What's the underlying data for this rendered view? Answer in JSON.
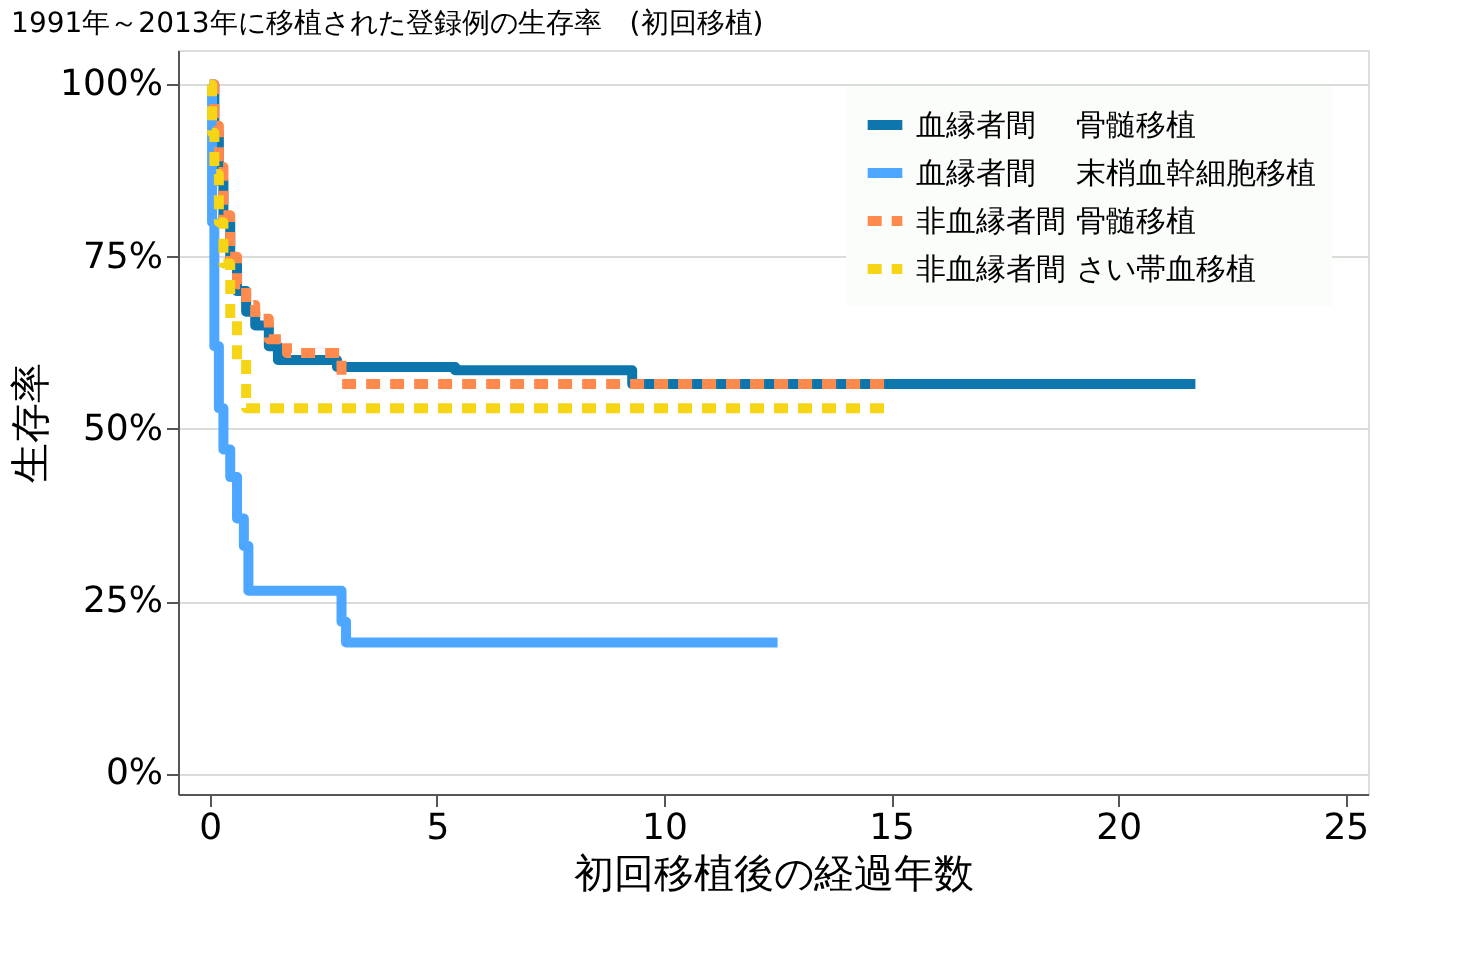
{
  "chart_data": {
    "type": "step",
    "title": "1991年～2013年に移植された登録例の生存率　(初回移植)",
    "xlabel": "初回移植後の経過年数",
    "ylabel": "生存率",
    "xlim": [
      -0.7,
      25.5
    ],
    "xticks": [
      0,
      5,
      10,
      15,
      20,
      25
    ],
    "ylim": [
      -3,
      105
    ],
    "yticks": [
      {
        "value": 0,
        "label": "0%"
      },
      {
        "value": 25,
        "label": "25%"
      },
      {
        "value": 50,
        "label": "50%"
      },
      {
        "value": 75,
        "label": "75%"
      },
      {
        "value": 100,
        "label": "100%"
      }
    ],
    "grid": "y",
    "legend": "top right",
    "marker": "none",
    "series": [
      {
        "name": "血縁者間　 骨髄移植",
        "color": "#0d76ad",
        "line_style": "solid",
        "x": [
          0,
          0.1,
          0.2,
          0.3,
          0.45,
          0.6,
          0.8,
          1.0,
          1.3,
          1.5,
          2.8,
          5.4,
          9.3,
          21.7
        ],
        "values": [
          100,
          93,
          86,
          80,
          74,
          70,
          67,
          65,
          62,
          60,
          59,
          58.5,
          56.5,
          56.5
        ]
      },
      {
        "name": "血縁者間　 末梢血幹細胞移植",
        "color": "#4da6ff",
        "line_style": "solid",
        "x": [
          0,
          0.05,
          0.1,
          0.2,
          0.3,
          0.45,
          0.6,
          0.75,
          0.85,
          2.9,
          3.0,
          12.5
        ],
        "values": [
          100,
          80,
          62,
          53,
          47,
          43,
          37,
          33,
          26.5,
          22,
          19,
          19
        ]
      },
      {
        "name": "非血縁者間 骨髄移植",
        "color": "#ff8a4d",
        "line_style": "dashed",
        "x": [
          0,
          0.1,
          0.2,
          0.3,
          0.45,
          0.6,
          0.8,
          1.0,
          1.3,
          1.7,
          2.9,
          15.0
        ],
        "values": [
          100,
          94,
          88,
          81,
          75,
          71,
          68,
          66,
          63,
          61,
          56.5,
          56.5
        ]
      },
      {
        "name": "非血縁者間 さい帯血移植",
        "color": "#f5d515",
        "line_style": "dashed",
        "x": [
          0,
          0.05,
          0.1,
          0.2,
          0.3,
          0.45,
          0.6,
          0.8,
          14.9
        ],
        "values": [
          100,
          93,
          87,
          80,
          74,
          66,
          60,
          53,
          53
        ]
      }
    ]
  }
}
